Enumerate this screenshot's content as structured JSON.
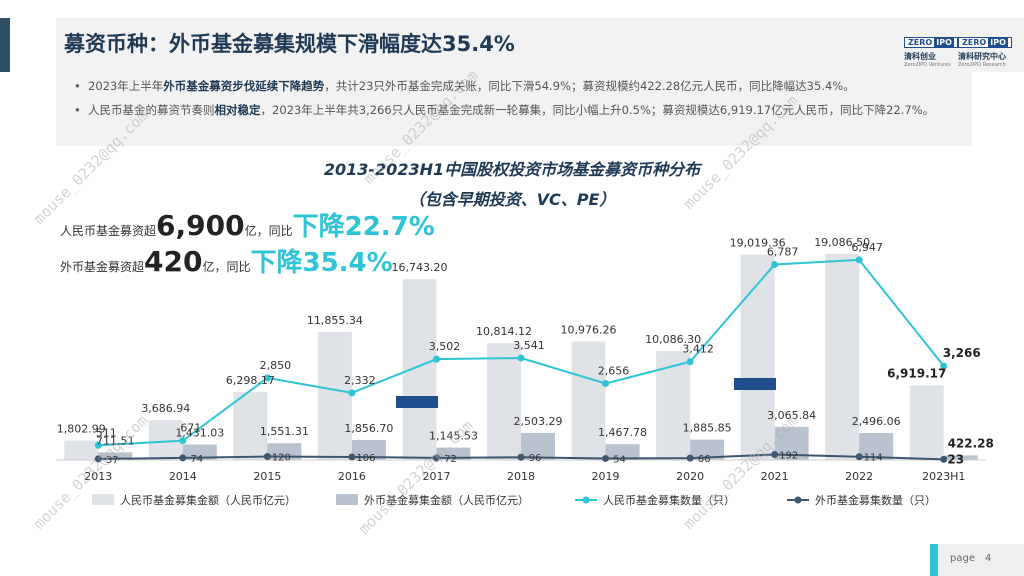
{
  "header": {
    "title": "募资币种：外币基金募集规模下滑幅度达35.4%"
  },
  "logos": [
    {
      "box": "ZERO",
      "ipo": "IPO",
      "cn": "清科创业",
      "en": "Zero2IPO Ventures"
    },
    {
      "box": "ZERO",
      "ipo": "IPO",
      "cn": "清科研究中心",
      "en": "Zero2IPO Research"
    }
  ],
  "bullets": [
    {
      "pre": "2023年上半年",
      "bold": "外币基金募资步伐延续下降趋势",
      "post": "，共计23只外币基金完成关账，同比下滑54.9%；募资规模约422.28亿元人民币，同比降幅达35.4%。"
    },
    {
      "pre": "人民币基金的募资节奏则",
      "bold": "相对稳定",
      "post": "，2023年上半年共3,266只人民币基金完成新一轮募集，同比小幅上升0.5%；募资规模达6,919.17亿元人民币，同比下降22.7%。"
    }
  ],
  "highlights": [
    {
      "pre": "人民币基金募资超",
      "big": "6,900",
      "mid": "亿，同比",
      "teal": "下降22.7%"
    },
    {
      "pre": "外币基金募资超",
      "big": "420",
      "mid": "亿，同比",
      "teal": "下降35.4%"
    }
  ],
  "watermark": "mouse_0232@qq.com",
  "chart_data": {
    "type": "bar",
    "title": "2013-2023H1中国股权投资市场基金募资币种分布",
    "subtitle": "（包含早期投资、VC、PE）",
    "categories": [
      "2013",
      "2014",
      "2015",
      "2016",
      "2017",
      "2018",
      "2019",
      "2020",
      "2021",
      "2022",
      "2023H1"
    ],
    "series": [
      {
        "name": "人民币基金募集金额（人民币亿元）",
        "kind": "bar",
        "color": "#dfe3e8",
        "values": [
          1802.99,
          3686.94,
          6298.17,
          11855.34,
          16743.2,
          10814.12,
          10976.26,
          10086.3,
          19019.36,
          19086.5,
          6919.17
        ],
        "labels": [
          "1,802.99",
          "3,686.94",
          "6,298.17",
          "11,855.34",
          "16,743.20",
          "10,814.12",
          "10,976.26",
          "10,086.30",
          "19,019.36",
          "19,086.50",
          "6,919.17"
        ]
      },
      {
        "name": "外币基金募集金额（人民币亿元）",
        "kind": "bar",
        "color": "#b9c2cf",
        "values": [
          711.51,
          1431.03,
          1551.31,
          1856.7,
          1145.53,
          2503.29,
          1467.78,
          1885.85,
          3065.84,
          2496.06,
          422.28
        ],
        "labels": [
          "711.51",
          "1,431.03",
          "1,551.31",
          "1,856.70",
          "1,145.53",
          "2,503.29",
          "1,467.78",
          "1,885.85",
          "3,065.84",
          "2,496.06",
          "422.28"
        ]
      },
      {
        "name": "人民币基金募集数量（只）",
        "kind": "line",
        "color": "#2ec4d6",
        "values": [
          511,
          671,
          2850,
          2332,
          3502,
          3541,
          2656,
          3412,
          6787,
          6947,
          3266
        ],
        "labels": [
          "511",
          "671",
          "2,850",
          "2,332",
          "3,502",
          "3,541",
          "2,656",
          "3,412",
          "6,787",
          "6,947",
          "3,266"
        ]
      },
      {
        "name": "外币基金募集数量（只）",
        "kind": "line",
        "color": "#3d5770",
        "values": [
          37,
          74,
          120,
          106,
          72,
          96,
          54,
          66,
          192,
          114,
          23
        ],
        "labels": [
          "37",
          "74",
          "120",
          "106",
          "72",
          "96",
          "54",
          "66",
          "192",
          "114",
          "23"
        ]
      }
    ],
    "ylim_amount": [
      0,
      20000
    ],
    "ylim_count": [
      0,
      7500
    ],
    "legend_position": "bottom"
  },
  "footer": {
    "page_label": "page",
    "page_number": "4"
  }
}
